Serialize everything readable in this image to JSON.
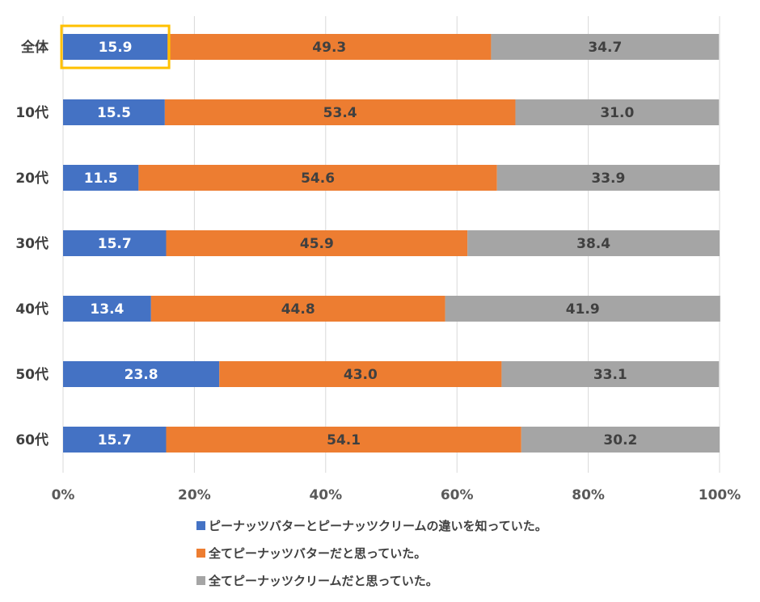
{
  "chart_data": {
    "type": "bar",
    "orientation": "horizontal",
    "stacked": "percent",
    "categories": [
      "全体",
      "10代",
      "20代",
      "30代",
      "40代",
      "50代",
      "60代"
    ],
    "series": [
      {
        "name": "ピーナッツバターとピーナッツクリームの違いを知っていた。",
        "color": "#4472C4",
        "label_color": "#FFFFFF",
        "values": [
          15.9,
          15.5,
          11.5,
          15.7,
          13.4,
          23.8,
          15.7
        ]
      },
      {
        "name": "全てピーナッツバターだと思っていた。",
        "color": "#ED7D31",
        "label_color": "#404040",
        "values": [
          49.3,
          53.4,
          54.6,
          45.9,
          44.8,
          43.0,
          54.1
        ]
      },
      {
        "name": "全てピーナッツクリームだと思っていた。",
        "color": "#A5A5A5",
        "label_color": "#404040",
        "values": [
          34.7,
          31.0,
          33.9,
          38.4,
          41.9,
          33.1,
          30.2
        ]
      }
    ],
    "value_labels": [
      [
        "15.9",
        "15.5",
        "11.5",
        "15.7",
        "13.4",
        "23.8",
        "15.7"
      ],
      [
        "49.3",
        "53.4",
        "54.6",
        "45.9",
        "44.8",
        "43.0",
        "54.1"
      ],
      [
        "34.7",
        "31.0",
        "33.9",
        "38.4",
        "41.9",
        "33.1",
        "30.2"
      ]
    ],
    "xticks": [
      "0%",
      "20%",
      "40%",
      "60%",
      "80%",
      "100%"
    ],
    "xlim": [
      0,
      100
    ],
    "grid": true,
    "legend_position": "bottom",
    "highlight": {
      "category": "全体",
      "series_index": 0,
      "color": "#FFC000"
    }
  }
}
